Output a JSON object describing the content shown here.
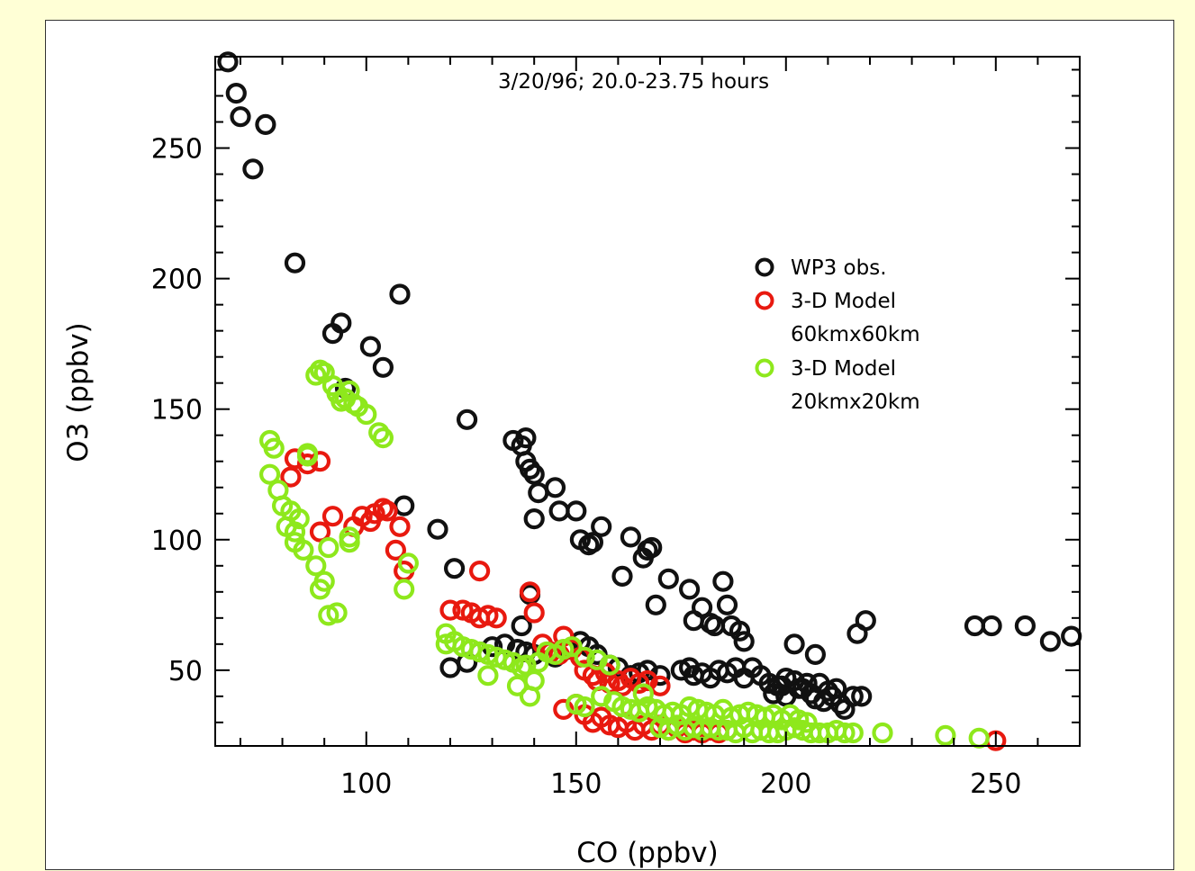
{
  "chart_data": {
    "type": "scatter",
    "title": "",
    "annotation": "3/20/96; 20.0-23.75 hours",
    "xlabel": "CO (ppbv)",
    "ylabel": "O3 (ppbv)",
    "xlim": [
      64,
      270
    ],
    "ylim": [
      21,
      285
    ],
    "xticks": [
      100,
      150,
      200,
      250
    ],
    "yticks": [
      50,
      100,
      150,
      200,
      250
    ],
    "grid": false,
    "legend_position": "right-middle",
    "legend": [
      {
        "label": "WP3 obs.",
        "color": "#111111"
      },
      {
        "label": "3-D Model",
        "sublabel": "60kmx60km",
        "color": "#e8190f"
      },
      {
        "label": "3-D Model",
        "sublabel": "20kmx20km",
        "color": "#8ee81c"
      }
    ],
    "series": [
      {
        "name": "WP3 obs.",
        "color": "#111111",
        "points": [
          [
            67,
            283
          ],
          [
            69,
            271
          ],
          [
            70,
            262
          ],
          [
            73,
            242
          ],
          [
            76,
            259
          ],
          [
            83,
            206
          ],
          [
            92,
            179
          ],
          [
            94,
            183
          ],
          [
            95,
            158
          ],
          [
            101,
            174
          ],
          [
            104,
            166
          ],
          [
            108,
            194
          ],
          [
            109,
            113
          ],
          [
            117,
            104
          ],
          [
            121,
            89
          ],
          [
            124,
            146
          ],
          [
            135,
            138
          ],
          [
            137,
            136
          ],
          [
            138,
            139
          ],
          [
            138,
            130
          ],
          [
            139,
            127
          ],
          [
            140,
            125
          ],
          [
            140,
            108
          ],
          [
            141,
            118
          ],
          [
            145,
            120
          ],
          [
            146,
            111
          ],
          [
            150,
            111
          ],
          [
            151,
            100
          ],
          [
            153,
            98
          ],
          [
            154,
            99
          ],
          [
            156,
            105
          ],
          [
            161,
            86
          ],
          [
            163,
            101
          ],
          [
            166,
            93
          ],
          [
            167,
            96
          ],
          [
            168,
            97
          ],
          [
            169,
            75
          ],
          [
            172,
            85
          ],
          [
            177,
            81
          ],
          [
            178,
            69
          ],
          [
            180,
            74
          ],
          [
            182,
            68
          ],
          [
            183,
            67
          ],
          [
            185,
            84
          ],
          [
            186,
            75
          ],
          [
            187,
            67
          ],
          [
            189,
            65
          ],
          [
            190,
            61
          ],
          [
            137,
            67
          ],
          [
            139,
            79
          ],
          [
            202,
            60
          ],
          [
            207,
            56
          ],
          [
            217,
            64
          ],
          [
            219,
            69
          ],
          [
            245,
            67
          ],
          [
            249,
            67
          ],
          [
            257,
            67
          ],
          [
            263,
            61
          ],
          [
            268,
            63
          ],
          [
            120,
            51
          ],
          [
            124,
            53
          ],
          [
            127,
            57
          ],
          [
            130,
            59
          ],
          [
            133,
            60
          ],
          [
            136,
            58
          ],
          [
            138,
            57
          ],
          [
            140,
            56
          ],
          [
            145,
            55
          ],
          [
            148,
            58
          ],
          [
            151,
            61
          ],
          [
            153,
            59
          ],
          [
            155,
            56
          ],
          [
            158,
            52
          ],
          [
            160,
            51
          ],
          [
            163,
            48
          ],
          [
            165,
            49
          ],
          [
            167,
            50
          ],
          [
            170,
            48
          ],
          [
            175,
            50
          ],
          [
            177,
            51
          ],
          [
            178,
            48
          ],
          [
            180,
            49
          ],
          [
            182,
            47
          ],
          [
            184,
            50
          ],
          [
            186,
            49
          ],
          [
            188,
            51
          ],
          [
            190,
            47
          ],
          [
            192,
            51
          ],
          [
            194,
            48
          ],
          [
            196,
            45
          ],
          [
            198,
            44
          ],
          [
            200,
            47
          ],
          [
            202,
            46
          ],
          [
            204,
            43
          ],
          [
            206,
            41
          ],
          [
            208,
            45
          ],
          [
            210,
            42
          ],
          [
            212,
            43
          ],
          [
            213,
            37
          ],
          [
            214,
            35
          ],
          [
            216,
            40
          ],
          [
            218,
            40
          ],
          [
            200,
            40
          ],
          [
            203,
            43
          ],
          [
            205,
            45
          ],
          [
            207,
            39
          ],
          [
            209,
            38
          ],
          [
            211,
            40
          ],
          [
            197,
            41
          ],
          [
            199,
            44
          ]
        ]
      },
      {
        "name": "3-D Model",
        "color": "#e8190f",
        "points": [
          [
            82,
            124
          ],
          [
            83,
            131
          ],
          [
            86,
            129
          ],
          [
            89,
            130
          ],
          [
            89,
            103
          ],
          [
            92,
            109
          ],
          [
            97,
            105
          ],
          [
            99,
            109
          ],
          [
            101,
            107
          ],
          [
            102,
            110
          ],
          [
            104,
            112
          ],
          [
            105,
            111
          ],
          [
            107,
            96
          ],
          [
            108,
            105
          ],
          [
            109,
            88
          ],
          [
            120,
            73
          ],
          [
            123,
            73
          ],
          [
            125,
            72
          ],
          [
            127,
            88
          ],
          [
            127,
            70
          ],
          [
            129,
            71
          ],
          [
            131,
            70
          ],
          [
            139,
            80
          ],
          [
            140,
            72
          ],
          [
            142,
            60
          ],
          [
            144,
            57
          ],
          [
            146,
            56
          ],
          [
            147,
            63
          ],
          [
            149,
            58
          ],
          [
            151,
            55
          ],
          [
            152,
            50
          ],
          [
            154,
            48
          ],
          [
            155,
            46
          ],
          [
            157,
            49
          ],
          [
            158,
            45
          ],
          [
            160,
            46
          ],
          [
            161,
            44
          ],
          [
            163,
            47
          ],
          [
            165,
            45
          ],
          [
            167,
            46
          ],
          [
            170,
            44
          ],
          [
            147,
            35
          ],
          [
            150,
            37
          ],
          [
            152,
            33
          ],
          [
            154,
            30
          ],
          [
            156,
            32
          ],
          [
            158,
            29
          ],
          [
            160,
            28
          ],
          [
            162,
            30
          ],
          [
            164,
            27
          ],
          [
            166,
            29
          ],
          [
            168,
            27
          ],
          [
            170,
            29
          ],
          [
            172,
            27
          ],
          [
            174,
            28
          ],
          [
            176,
            26
          ],
          [
            178,
            27
          ],
          [
            180,
            26
          ],
          [
            182,
            27
          ],
          [
            184,
            26
          ],
          [
            186,
            27
          ],
          [
            250,
            23
          ]
        ]
      },
      {
        "name": "3-D Model",
        "color": "#8ee81c",
        "points": [
          [
            88,
            163
          ],
          [
            89,
            165
          ],
          [
            90,
            164
          ],
          [
            92,
            159
          ],
          [
            93,
            156
          ],
          [
            94,
            153
          ],
          [
            95,
            154
          ],
          [
            96,
            157
          ],
          [
            97,
            152
          ],
          [
            98,
            151
          ],
          [
            100,
            148
          ],
          [
            103,
            141
          ],
          [
            104,
            139
          ],
          [
            77,
            138
          ],
          [
            77,
            125
          ],
          [
            78,
            135
          ],
          [
            79,
            119
          ],
          [
            80,
            113
          ],
          [
            81,
            105
          ],
          [
            82,
            111
          ],
          [
            83,
            103
          ],
          [
            83,
            99
          ],
          [
            84,
            108
          ],
          [
            85,
            96
          ],
          [
            86,
            132
          ],
          [
            86,
            133
          ],
          [
            88,
            90
          ],
          [
            89,
            81
          ],
          [
            90,
            84
          ],
          [
            91,
            71
          ],
          [
            91,
            97
          ],
          [
            93,
            72
          ],
          [
            96,
            101
          ],
          [
            96,
            99
          ],
          [
            109,
            81
          ],
          [
            110,
            91
          ],
          [
            119,
            60
          ],
          [
            119,
            64
          ],
          [
            121,
            61
          ],
          [
            123,
            59
          ],
          [
            125,
            58
          ],
          [
            127,
            57
          ],
          [
            129,
            56
          ],
          [
            129,
            48
          ],
          [
            131,
            55
          ],
          [
            133,
            54
          ],
          [
            135,
            53
          ],
          [
            136,
            44
          ],
          [
            137,
            51
          ],
          [
            138,
            52
          ],
          [
            139,
            40
          ],
          [
            140,
            46
          ],
          [
            141,
            53
          ],
          [
            143,
            57
          ],
          [
            145,
            56
          ],
          [
            147,
            58
          ],
          [
            149,
            59
          ],
          [
            152,
            55
          ],
          [
            155,
            54
          ],
          [
            158,
            52
          ],
          [
            150,
            37
          ],
          [
            152,
            36
          ],
          [
            156,
            40
          ],
          [
            159,
            38
          ],
          [
            161,
            36
          ],
          [
            163,
            35
          ],
          [
            165,
            34
          ],
          [
            166,
            41
          ],
          [
            167,
            36
          ],
          [
            169,
            35
          ],
          [
            171,
            33
          ],
          [
            173,
            34
          ],
          [
            175,
            33
          ],
          [
            177,
            36
          ],
          [
            179,
            35
          ],
          [
            181,
            34
          ],
          [
            183,
            33
          ],
          [
            185,
            35
          ],
          [
            187,
            32
          ],
          [
            189,
            33
          ],
          [
            191,
            34
          ],
          [
            193,
            33
          ],
          [
            195,
            32
          ],
          [
            197,
            33
          ],
          [
            199,
            31
          ],
          [
            201,
            33
          ],
          [
            203,
            31
          ],
          [
            205,
            30
          ],
          [
            170,
            28
          ],
          [
            172,
            27
          ],
          [
            174,
            29
          ],
          [
            176,
            27
          ],
          [
            178,
            28
          ],
          [
            180,
            27
          ],
          [
            182,
            28
          ],
          [
            184,
            27
          ],
          [
            186,
            27
          ],
          [
            188,
            26
          ],
          [
            190,
            28
          ],
          [
            192,
            26
          ],
          [
            194,
            27
          ],
          [
            196,
            26
          ],
          [
            198,
            26
          ],
          [
            200,
            27
          ],
          [
            202,
            28
          ],
          [
            204,
            27
          ],
          [
            206,
            26
          ],
          [
            208,
            26
          ],
          [
            210,
            26
          ],
          [
            212,
            27
          ],
          [
            214,
            26
          ],
          [
            216,
            26
          ],
          [
            223,
            26
          ],
          [
            238,
            25
          ],
          [
            246,
            24
          ]
        ]
      }
    ]
  }
}
